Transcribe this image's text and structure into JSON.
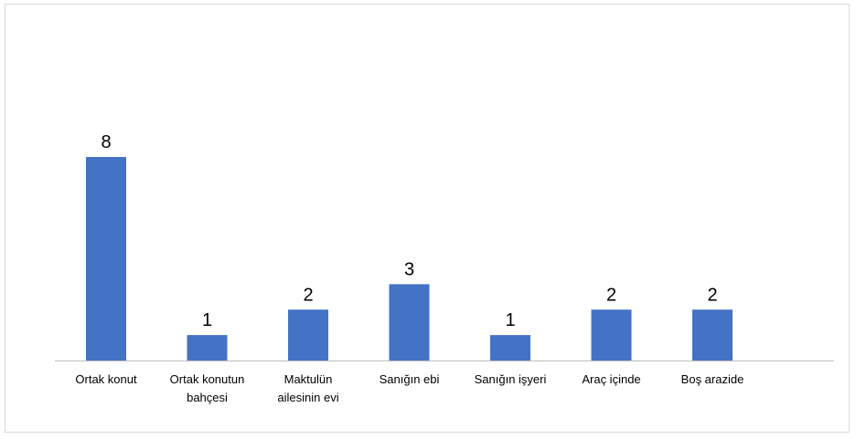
{
  "chart_data": {
    "type": "bar",
    "categories": [
      "Ortak konut",
      "Ortak konutun bahçesi",
      "Maktulün ailesinin evi",
      "Sanığın ebi",
      "Sanığın işyeri",
      "Araç içinde",
      "Boş arazide"
    ],
    "category_lines": [
      [
        "Ortak konut"
      ],
      [
        "Ortak konutun",
        "bahçesi"
      ],
      [
        "Maktulün",
        "ailesinin evi"
      ],
      [
        "Sanığın ebi"
      ],
      [
        "Sanığın işyeri"
      ],
      [
        "Araç içinde"
      ],
      [
        "Boş arazide"
      ]
    ],
    "values": [
      8,
      1,
      2,
      3,
      1,
      2,
      2
    ],
    "ylim": [
      0,
      8
    ],
    "grid": false,
    "legend": "none",
    "bar_color": "#4472C4",
    "axis_color": "#bfbfbf"
  }
}
